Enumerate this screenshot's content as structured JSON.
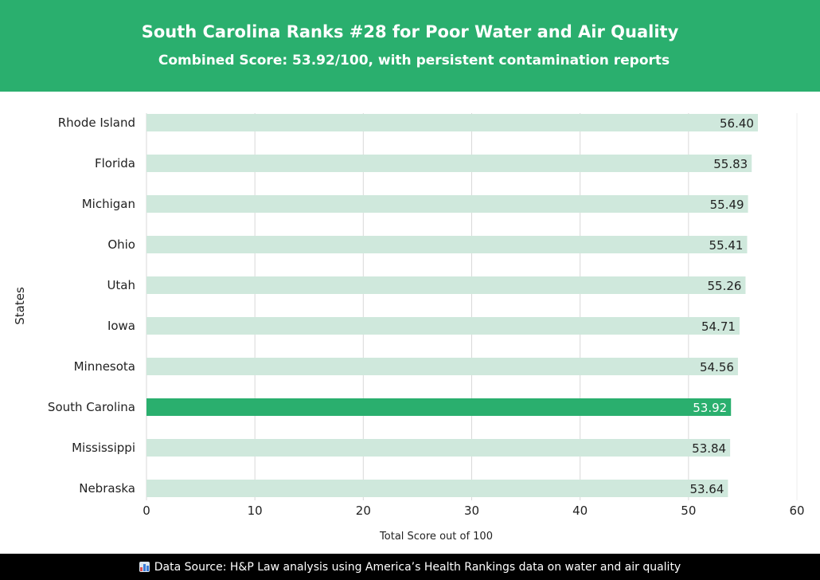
{
  "header": {
    "title": "South Carolina Ranks #28 for Poor Water and Air Quality",
    "subtitle": "Combined Score: 53.92/100, with persistent contamination reports"
  },
  "footer": {
    "icon": "bar-chart-icon",
    "text": "Data Source: H&P Law analysis using America’s Health Rankings data on water and air quality"
  },
  "colors": {
    "accent": "#2aaf6e",
    "bar": "#cfe8dc",
    "highlight": "#2aaf6e",
    "grid": "#d9d9d9"
  },
  "chart_data": {
    "type": "bar",
    "orientation": "horizontal",
    "title": "South Carolina Ranks #28 for Poor Water and Air Quality",
    "subtitle": "Combined Score: 53.92/100, with persistent contamination reports",
    "xlabel": "Total Score out of 100",
    "ylabel": "States",
    "categories": [
      "Rhode Island",
      "Florida",
      "Michigan",
      "Ohio",
      "Utah",
      "Iowa",
      "Minnesota",
      "South Carolina",
      "Mississippi",
      "Nebraska"
    ],
    "values": [
      56.4,
      55.83,
      55.49,
      55.41,
      55.26,
      54.71,
      54.56,
      53.92,
      53.84,
      53.64
    ],
    "value_labels": [
      "56.40",
      "55.83",
      "55.49",
      "55.41",
      "55.26",
      "54.71",
      "54.56",
      "53.92",
      "53.84",
      "53.64"
    ],
    "highlight": "South Carolina",
    "xlim": [
      0,
      60
    ],
    "xticks": [
      "0",
      "10",
      "20",
      "30",
      "40",
      "50",
      "60"
    ],
    "grid": true
  }
}
